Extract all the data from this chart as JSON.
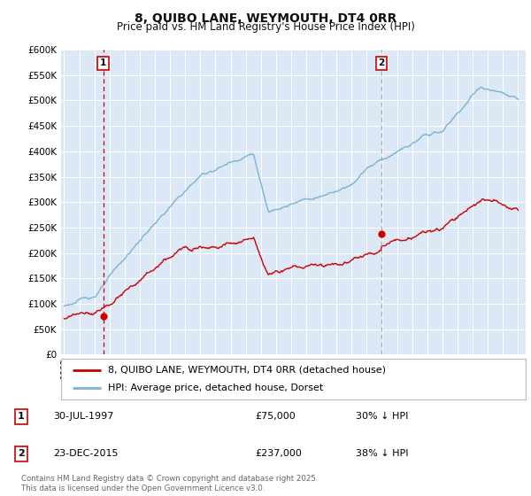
{
  "title": "8, QUIBO LANE, WEYMOUTH, DT4 0RR",
  "subtitle": "Price paid vs. HM Land Registry's House Price Index (HPI)",
  "sale1_date": "30-JUL-1997",
  "sale1_price": 75000,
  "sale1_year": 1997.58,
  "sale1_label": "30% ↓ HPI",
  "sale2_date": "23-DEC-2015",
  "sale2_price": 237000,
  "sale2_year": 2015.97,
  "sale2_label": "38% ↓ HPI",
  "legend1": "8, QUIBO LANE, WEYMOUTH, DT4 0RR (detached house)",
  "legend2": "HPI: Average price, detached house, Dorset",
  "footer": "Contains HM Land Registry data © Crown copyright and database right 2025.\nThis data is licensed under the Open Government Licence v3.0.",
  "hpi_color": "#7ab3d4",
  "price_color": "#cc0000",
  "sale1_dashed_color": "#cc0000",
  "sale2_dashed_color": "#aaaaaa",
  "bg_color": "#dce8f5",
  "grid_color": "#ffffff",
  "ylim_min": 0,
  "ylim_max": 600000,
  "ytick_step": 50000,
  "xlim_min": 1994.8,
  "xlim_max": 2025.5
}
